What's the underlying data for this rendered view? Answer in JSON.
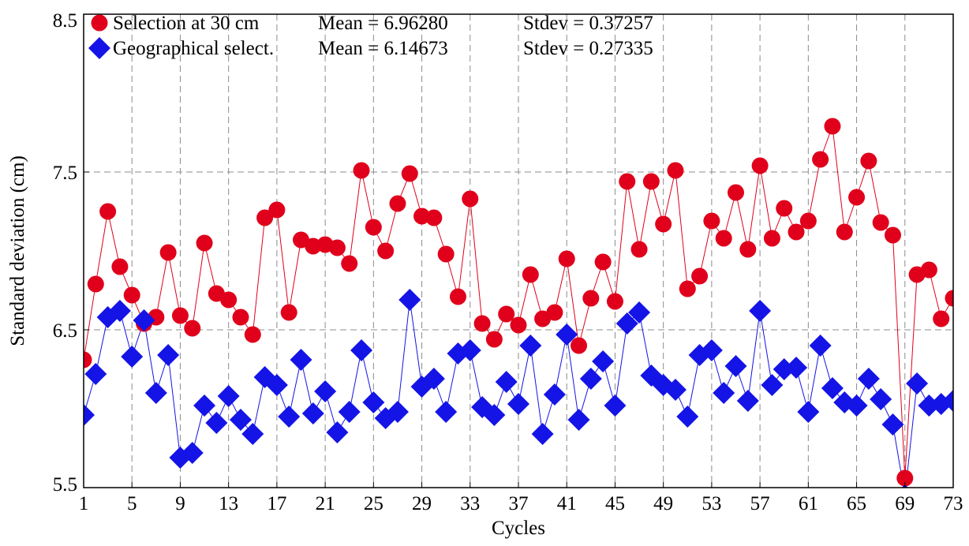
{
  "chart_data": {
    "type": "scatter",
    "xlabel": "Cycles",
    "ylabel": "Standard deviation (cm)",
    "xlim": [
      1,
      73
    ],
    "ylim": [
      5.5,
      8.5
    ],
    "x_ticks": [
      1,
      5,
      9,
      13,
      17,
      21,
      25,
      29,
      33,
      37,
      41,
      45,
      49,
      53,
      57,
      61,
      65,
      69,
      73
    ],
    "x_tick_labels": [
      "1",
      "5",
      "9",
      "13",
      "17",
      "21",
      "25",
      "29",
      "33",
      "37",
      "41",
      "45",
      "49",
      "53",
      "57",
      "61",
      "65",
      "69",
      "73"
    ],
    "y_ticks": [
      5.5,
      6.5,
      7.5,
      8.5
    ],
    "y_tick_labels": [
      "5.5",
      "6.5",
      "7.5",
      "8.5"
    ],
    "grid": true,
    "legend_position": "top-left",
    "series": [
      {
        "name": "Selection at 30 cm",
        "mean_text": "Mean = 6.96280",
        "stdev_text": "Stdev = 0.37257",
        "color": "#e0001b",
        "marker": "circle",
        "x": [
          1,
          2,
          3,
          4,
          5,
          6,
          7,
          8,
          9,
          10,
          11,
          12,
          13,
          14,
          15,
          16,
          17,
          18,
          19,
          20,
          21,
          22,
          23,
          24,
          25,
          26,
          27,
          28,
          29,
          30,
          31,
          32,
          33,
          34,
          35,
          36,
          37,
          38,
          39,
          40,
          41,
          42,
          43,
          44,
          45,
          46,
          47,
          48,
          49,
          50,
          51,
          52,
          53,
          54,
          55,
          56,
          57,
          58,
          59,
          60,
          61,
          62,
          63,
          64,
          65,
          66,
          67,
          68,
          69,
          70,
          71,
          72,
          73
        ],
        "values": [
          6.31,
          6.79,
          7.25,
          6.9,
          6.72,
          6.54,
          6.58,
          6.99,
          6.59,
          6.51,
          7.05,
          6.73,
          6.69,
          6.58,
          6.47,
          7.21,
          7.26,
          6.61,
          7.07,
          7.03,
          7.04,
          7.02,
          6.92,
          7.51,
          7.15,
          7.0,
          7.3,
          7.49,
          7.22,
          7.21,
          6.98,
          6.71,
          7.33,
          6.54,
          6.44,
          6.6,
          6.53,
          6.85,
          6.57,
          6.61,
          6.95,
          6.4,
          6.7,
          6.93,
          6.68,
          7.44,
          7.01,
          7.44,
          7.17,
          7.51,
          6.76,
          6.84,
          7.19,
          7.08,
          7.37,
          7.01,
          7.54,
          7.08,
          7.27,
          7.12,
          7.19,
          7.58,
          7.79,
          7.12,
          7.34,
          7.57,
          7.18,
          7.1,
          5.56,
          6.85,
          6.88,
          6.57,
          6.7
        ]
      },
      {
        "name": "Geographical select.",
        "mean_text": "Mean = 6.14673",
        "stdev_text": "Stdev = 0.27335",
        "color": "#1414e6",
        "marker": "diamond",
        "x": [
          1,
          2,
          3,
          4,
          5,
          6,
          7,
          8,
          9,
          10,
          11,
          12,
          13,
          14,
          15,
          16,
          17,
          18,
          19,
          20,
          21,
          22,
          23,
          24,
          25,
          26,
          27,
          28,
          29,
          30,
          31,
          32,
          33,
          34,
          35,
          36,
          37,
          38,
          39,
          40,
          41,
          42,
          43,
          44,
          45,
          46,
          47,
          48,
          49,
          50,
          51,
          52,
          53,
          54,
          55,
          56,
          57,
          58,
          59,
          60,
          61,
          62,
          63,
          64,
          65,
          66,
          67,
          68,
          69,
          70,
          71,
          72,
          73
        ],
        "values": [
          5.96,
          6.22,
          6.58,
          6.62,
          6.33,
          6.56,
          6.1,
          6.34,
          5.69,
          5.72,
          6.02,
          5.91,
          6.08,
          5.93,
          5.84,
          6.2,
          6.15,
          5.95,
          6.31,
          5.97,
          6.11,
          5.85,
          5.98,
          6.37,
          6.04,
          5.94,
          5.98,
          6.69,
          6.14,
          6.19,
          5.98,
          6.35,
          6.37,
          6.01,
          5.96,
          6.17,
          6.03,
          6.4,
          5.84,
          6.09,
          6.47,
          5.93,
          6.19,
          6.3,
          6.02,
          6.54,
          6.61,
          6.21,
          6.15,
          6.12,
          5.95,
          6.34,
          6.37,
          6.1,
          6.27,
          6.05,
          6.62,
          6.15,
          6.25,
          6.26,
          5.98,
          6.4,
          6.13,
          6.04,
          6.02,
          6.19,
          6.06,
          5.9,
          5.45,
          6.16,
          6.02,
          6.03,
          6.05
        ]
      }
    ]
  }
}
